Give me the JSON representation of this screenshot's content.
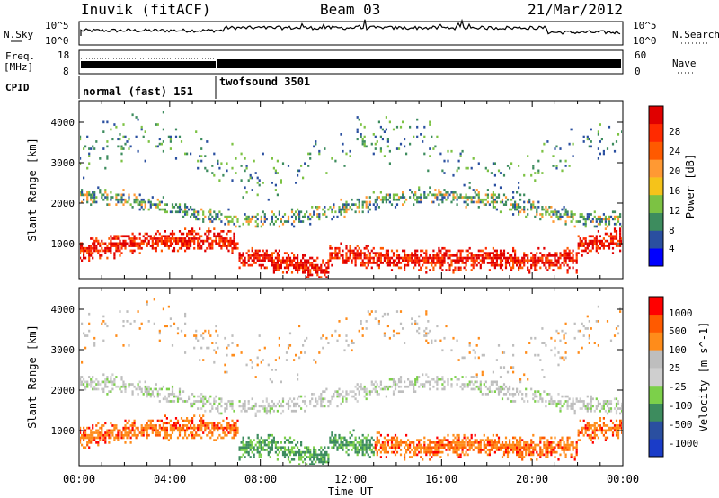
{
  "header": {
    "title": "Inuvik (fitACF)",
    "beam": "Beam 03",
    "date": "21/Mar/2012"
  },
  "noise_panel": {
    "left_label": "N.Sky",
    "right_label": "N.Search",
    "left_ticks": [
      "10^5",
      "10^0"
    ],
    "right_ticks": [
      "10^5",
      "10^0"
    ]
  },
  "freq_panel": {
    "left_label_1": "Freq.",
    "left_label_2": "[MHz]",
    "right_label": "Nave",
    "left_ticks": [
      "18",
      "8"
    ],
    "right_ticks": [
      "60",
      "0"
    ]
  },
  "cpid_panel": {
    "label": "CPID",
    "modes": [
      {
        "name": "normal (fast) 151",
        "start_h": 0,
        "end_h": 6
      },
      {
        "name": "twofsound 3501",
        "start_h": 6,
        "end_h": 24
      }
    ]
  },
  "time_axis": {
    "label": "Time UT",
    "ticks": [
      "00:00",
      "04:00",
      "08:00",
      "12:00",
      "16:00",
      "20:00",
      "00:00"
    ]
  },
  "colors": {
    "power": [
      "#0000ff",
      "#2a4fa0",
      "#3d8c5e",
      "#7cc243",
      "#f5c31a",
      "#ff9933",
      "#ff5a00",
      "#ff2a00",
      "#e00000"
    ],
    "velocity": [
      "#ff0000",
      "#ff5a00",
      "#ff8c1a",
      "#bebebe",
      "#cfcfcf",
      "#7cd04a",
      "#3d8c5e",
      "#2a4fa0",
      "#1a3cc8"
    ]
  },
  "chart_data": [
    {
      "type": "heatmap",
      "ylabel": "Slant Range [km]",
      "xlabel": "",
      "y_ticks": [
        "1000",
        "2000",
        "3000",
        "4000"
      ],
      "colorbar": {
        "label": "Power [dB]",
        "ticks": [
          "28",
          "24",
          "20",
          "16",
          "12",
          "8",
          "4"
        ],
        "range": [
          0,
          32
        ]
      }
    },
    {
      "type": "heatmap",
      "ylabel": "Slant Range [km]",
      "xlabel": "Time UT",
      "y_ticks": [
        "1000",
        "2000",
        "3000",
        "4000"
      ],
      "colorbar": {
        "label": "Velocity [m s^-1]",
        "ticks": [
          "1000",
          "500",
          "100",
          "25",
          "-25",
          "-100",
          "-500",
          "-1000"
        ]
      }
    }
  ]
}
